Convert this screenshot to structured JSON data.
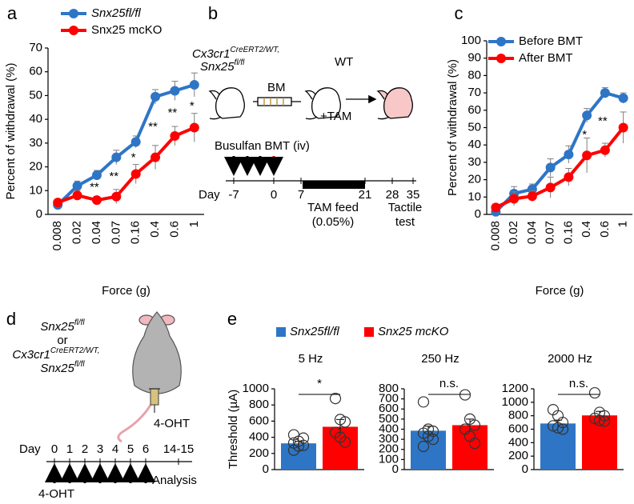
{
  "chart_data": [
    {
      "type": "line",
      "panel": "a",
      "categories": [
        "0.008",
        "0.02",
        "0.04",
        "0.07",
        "0.16",
        "0.4",
        "0.6",
        "1"
      ],
      "series": [
        {
          "name": "Snx25fl/fl",
          "color": "#2e75c6",
          "values": [
            4,
            12,
            16.5,
            24,
            30.5,
            49.5,
            52,
            54.5
          ],
          "errors": [
            1,
            2,
            2,
            3,
            2.5,
            3,
            4,
            5
          ]
        },
        {
          "name": "Snx25 mcKO",
          "color": "#ff0000",
          "values": [
            5,
            8,
            6,
            7.5,
            17,
            24,
            33,
            36.5
          ],
          "errors": [
            1,
            2,
            1.5,
            3,
            4,
            5,
            4,
            6
          ]
        }
      ],
      "significance": [
        null,
        null,
        "**",
        "**",
        "*",
        "**",
        "**",
        "*"
      ],
      "xlabel": "Force (g)",
      "ylabel": "Percent of withdrawal (%)",
      "ylim": [
        0,
        70
      ],
      "yticks": [
        0,
        10,
        20,
        30,
        40,
        50,
        60,
        70
      ]
    },
    {
      "type": "line",
      "panel": "c",
      "categories": [
        "0.008",
        "0.02",
        "0.04",
        "0.07",
        "0.16",
        "0.4",
        "0.6",
        "1"
      ],
      "series": [
        {
          "name": "Before BMT",
          "color": "#2e75c6",
          "values": [
            1.5,
            12,
            14.5,
            27,
            34.5,
            57,
            70,
            67
          ],
          "errors": [
            1,
            4,
            3,
            5,
            5,
            4,
            3,
            3
          ]
        },
        {
          "name": "After BMT",
          "color": "#ff0000",
          "values": [
            4,
            9,
            10.5,
            15.5,
            21.5,
            34,
            37,
            50
          ],
          "errors": [
            2,
            4,
            3,
            6,
            5,
            10,
            4,
            9
          ]
        }
      ],
      "significance": [
        null,
        null,
        null,
        null,
        null,
        "*",
        "**",
        null
      ],
      "xlabel": "Force (g)",
      "ylabel": "Percent of withdrawal (%)",
      "ylim": [
        0,
        100
      ],
      "yticks": [
        0,
        10,
        20,
        30,
        40,
        50,
        60,
        70,
        80,
        90,
        100
      ]
    },
    {
      "type": "bar",
      "title": "5 Hz",
      "ylabel": "Threshold (µA)",
      "values": [
        325,
        530
      ],
      "errors": [
        25,
        90
      ],
      "points": [
        [
          240,
          290,
          300,
          330,
          350,
          390,
          430
        ],
        [
          880,
          620,
          590,
          460,
          400,
          340
        ]
      ],
      "significance": "*",
      "ylim": [
        0,
        1000
      ],
      "yticks": [
        0,
        200,
        400,
        600,
        800,
        1000
      ]
    },
    {
      "type": "bar",
      "title": "250 Hz",
      "values": [
        385,
        440
      ],
      "errors": [
        45,
        60
      ],
      "points": [
        [
          670,
          400,
          380,
          360,
          330,
          300,
          230
        ],
        [
          740,
          500,
          440,
          400,
          330,
          260
        ]
      ],
      "significance": "n.s.",
      "ylim": [
        0,
        800
      ],
      "yticks": [
        0,
        100,
        200,
        300,
        400,
        500,
        600,
        700,
        800
      ]
    },
    {
      "type": "bar",
      "title": "2000 Hz",
      "values": [
        685,
        805
      ],
      "errors": [
        50,
        60
      ],
      "points": [
        [
          890,
          800,
          700,
          650,
          620,
          600
        ],
        [
          1140,
          850,
          800,
          760,
          730,
          720
        ]
      ],
      "significance": "n.s.",
      "ylim": [
        0,
        1200
      ],
      "yticks": [
        0,
        200,
        400,
        600,
        800,
        1000,
        1200
      ]
    }
  ],
  "panel_e": {
    "label": "e",
    "legend": [
      {
        "name": "Snx25fl/fl",
        "color": "#2e75c6"
      },
      {
        "name": "Snx25 mcKO",
        "color": "#ff0000"
      }
    ]
  },
  "panel_b": {
    "label": "b",
    "donor": [
      {
        "base": "Cx3cr1",
        "sup": "CreERT2/WT,"
      },
      {
        "base": "Snx25",
        "sup": "fl/fl"
      }
    ],
    "recipient": "WT",
    "bm": "BM",
    "tam": "+TAM",
    "timeline_title": "Busulfan BMT (iv)",
    "day": "Day",
    "days": [
      -7,
      0,
      7,
      21,
      28,
      35
    ],
    "feed": [
      "TAM feed",
      "(0.05%)"
    ],
    "test": [
      "Tactile",
      "test"
    ]
  },
  "panel_d": {
    "label": "d",
    "genotypes": [
      {
        "base": "Snx25",
        "sup": "fl/fl"
      },
      "or",
      {
        "base": "Cx3cr1",
        "sup": "CreERT2/WT,"
      },
      {
        "base": "Snx25",
        "sup": "fl/fl"
      }
    ],
    "injection": "4-OHT",
    "day": "Day",
    "days": [
      0,
      1,
      2,
      3,
      4,
      5,
      6,
      "14-15"
    ],
    "analysis": "Analysis",
    "arrow_label": "4-OHT"
  }
}
